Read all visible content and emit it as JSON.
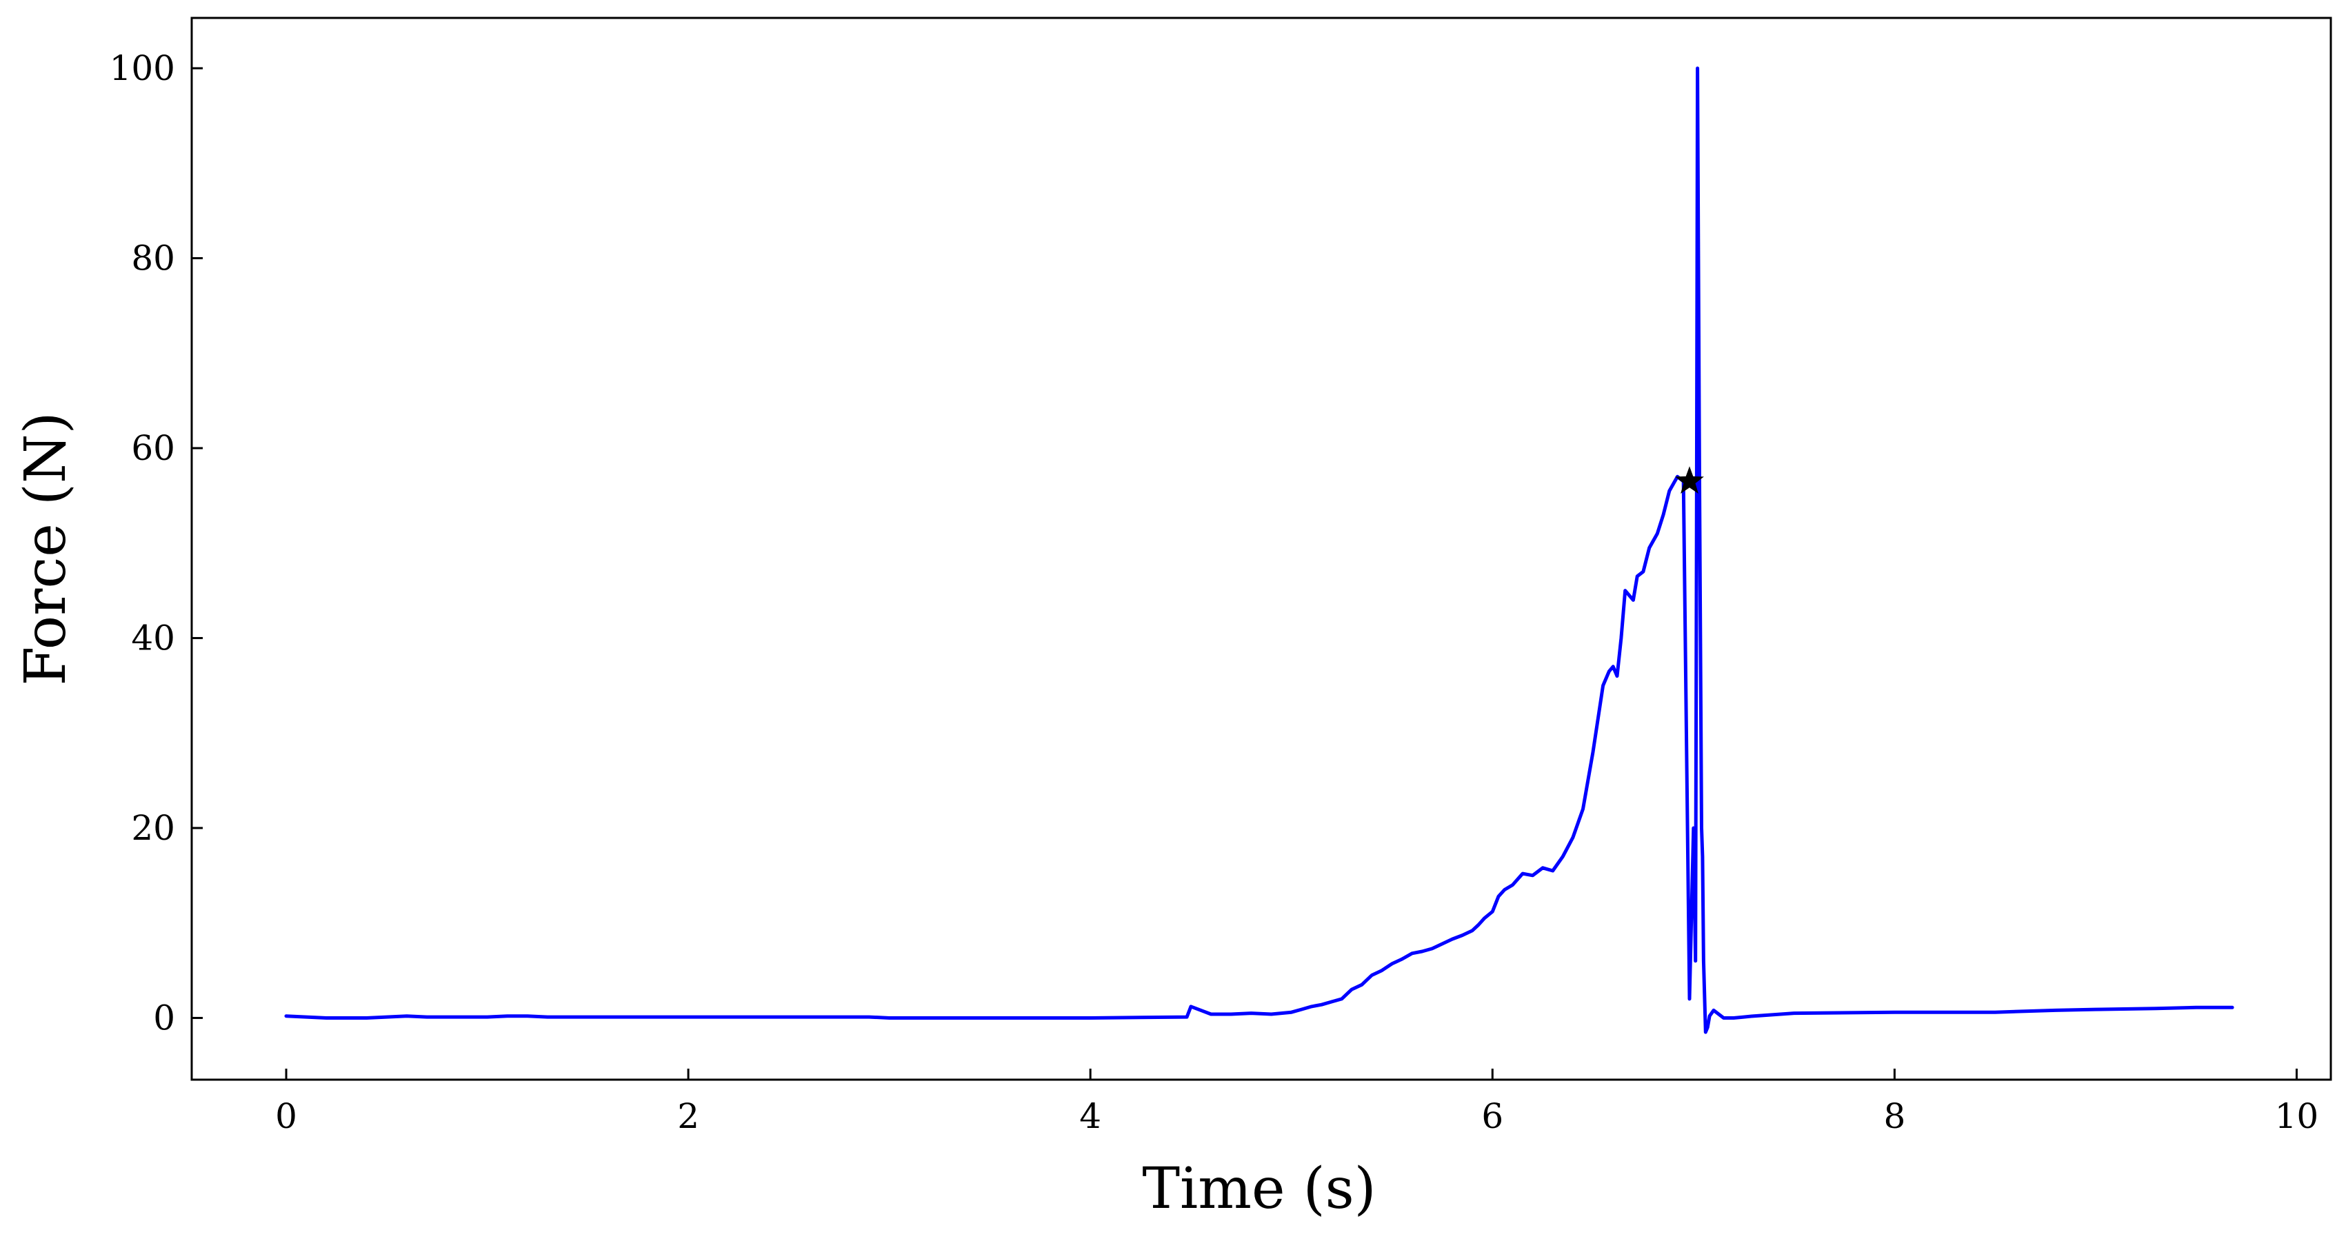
{
  "chart_data": {
    "type": "line",
    "title": "",
    "xlabel": "Time (s)",
    "ylabel": "Force (N)",
    "xlim": [
      -0.47,
      10.17
    ],
    "ylim": [
      -6.5,
      105.3
    ],
    "xticks": [
      0,
      2,
      4,
      6,
      8,
      10
    ],
    "yticks": [
      0,
      20,
      40,
      60,
      80,
      100
    ],
    "grid": false,
    "legend": "none",
    "line_color": "#0000ff",
    "marker": {
      "shape": "star",
      "color": "#000000",
      "x": 6.98,
      "y": 56.5
    },
    "series": [
      {
        "x": [
          0.0,
          0.1,
          0.2,
          0.3,
          0.4,
          0.5,
          0.6,
          0.7,
          0.8,
          0.9,
          1.0,
          1.1,
          1.2,
          1.3,
          1.5,
          2.0,
          2.5,
          2.9,
          3.0,
          3.5,
          4.0,
          4.48,
          4.5,
          4.55,
          4.6,
          4.7,
          4.8,
          4.9,
          5.0,
          5.05,
          5.1,
          5.15,
          5.2,
          5.25,
          5.3,
          5.35,
          5.4,
          5.45,
          5.5,
          5.55,
          5.6,
          5.65,
          5.7,
          5.75,
          5.8,
          5.85,
          5.9,
          5.93,
          5.96,
          6.0,
          6.03,
          6.06,
          6.1,
          6.15,
          6.2,
          6.25,
          6.3,
          6.35,
          6.4,
          6.45,
          6.5,
          6.55,
          6.58,
          6.6,
          6.62,
          6.64,
          6.66,
          6.7,
          6.72,
          6.75,
          6.78,
          6.82,
          6.85,
          6.88,
          6.92,
          6.95,
          6.98,
          7.0,
          7.01,
          7.015,
          7.02,
          7.03,
          7.04,
          7.045,
          7.05,
          7.06,
          7.07,
          7.08,
          7.1,
          7.15,
          7.2,
          7.25,
          7.3,
          7.5,
          8.0,
          8.5,
          8.8,
          9.0,
          9.3,
          9.5,
          9.68
        ],
        "y": [
          0.2,
          0.1,
          0.0,
          0.0,
          0.0,
          0.1,
          0.2,
          0.1,
          0.1,
          0.1,
          0.1,
          0.2,
          0.2,
          0.1,
          0.1,
          0.1,
          0.1,
          0.1,
          0.0,
          0.0,
          0.0,
          0.1,
          1.2,
          0.8,
          0.4,
          0.4,
          0.5,
          0.4,
          0.6,
          0.9,
          1.2,
          1.4,
          1.7,
          2.0,
          3.0,
          3.5,
          4.5,
          5.0,
          5.7,
          6.2,
          6.8,
          7.0,
          7.3,
          7.8,
          8.3,
          8.7,
          9.2,
          9.8,
          10.5,
          11.2,
          12.8,
          13.5,
          14.0,
          15.2,
          15.0,
          15.8,
          15.5,
          17.0,
          19.0,
          22.0,
          28.0,
          35.0,
          36.5,
          37.0,
          36.0,
          40.0,
          45.0,
          44.0,
          46.5,
          47.0,
          49.5,
          51.0,
          53.0,
          55.5,
          57.0,
          56.5,
          2.0,
          20.0,
          6.0,
          50.0,
          100.0,
          55.0,
          20.0,
          17.0,
          6.0,
          -1.5,
          -1.0,
          0.2,
          0.8,
          0.0,
          0.0,
          0.1,
          0.2,
          0.5,
          0.6,
          0.6,
          0.8,
          0.9,
          1.0,
          1.1,
          1.1
        ]
      }
    ]
  }
}
